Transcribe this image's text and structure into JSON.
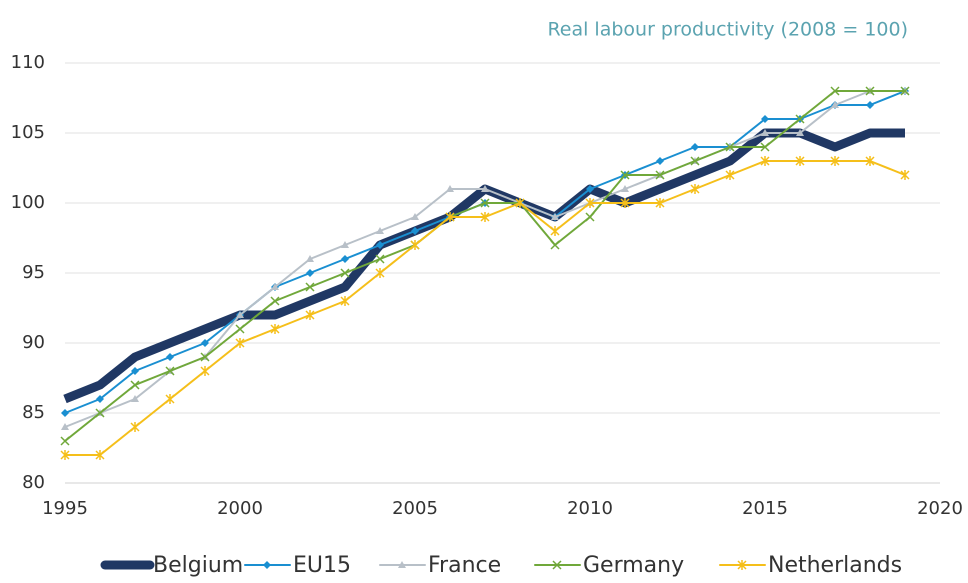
{
  "chart_data": {
    "type": "line",
    "title": "Real labour productivity (2008 = 100)",
    "x": [
      1995,
      1996,
      1997,
      1998,
      1999,
      2000,
      2001,
      2002,
      2003,
      2004,
      2005,
      2006,
      2007,
      2008,
      2009,
      2010,
      2011,
      2012,
      2013,
      2014,
      2015,
      2016,
      2017,
      2018,
      2019
    ],
    "series": [
      {
        "name": "Belgium",
        "color": "#203864",
        "marker": "none",
        "values": [
          86,
          87,
          89,
          90,
          91,
          92,
          92,
          93,
          94,
          97,
          98,
          99,
          101,
          100,
          99,
          101,
          100,
          101,
          102,
          103,
          105,
          105,
          104,
          105,
          105
        ]
      },
      {
        "name": "EU15",
        "color": "#1a8fd1",
        "marker": "diamond",
        "values": [
          85,
          86,
          88,
          89,
          90,
          92,
          94,
          95,
          96,
          97,
          98,
          99,
          100,
          100,
          99,
          101,
          102,
          103,
          104,
          104,
          106,
          106,
          107,
          107,
          108
        ]
      },
      {
        "name": "France",
        "color": "#b8c0c8",
        "marker": "triangle",
        "values": [
          84,
          85,
          86,
          88,
          89,
          92,
          94,
          96,
          97,
          98,
          99,
          101,
          101,
          100,
          99,
          100,
          101,
          102,
          103,
          104,
          105,
          105,
          107,
          108,
          108
        ]
      },
      {
        "name": "Germany",
        "color": "#70a83a",
        "marker": "x",
        "values": [
          83,
          85,
          87,
          88,
          89,
          91,
          93,
          94,
          95,
          96,
          97,
          99,
          100,
          100,
          97,
          99,
          102,
          102,
          103,
          104,
          104,
          106,
          108,
          108,
          108
        ]
      },
      {
        "name": "Netherlands",
        "color": "#f5bf1a",
        "marker": "star",
        "values": [
          82,
          82,
          84,
          86,
          88,
          90,
          91,
          92,
          93,
          95,
          97,
          99,
          99,
          100,
          98,
          100,
          100,
          100,
          101,
          102,
          103,
          103,
          103,
          103,
          102
        ]
      }
    ],
    "xlim": [
      1995,
      2020
    ],
    "xticks": [
      1995,
      2000,
      2005,
      2010,
      2015,
      2020
    ],
    "ylim": [
      80,
      110
    ],
    "yticks": [
      80,
      85,
      90,
      95,
      100,
      105,
      110
    ],
    "grid": true,
    "legend": "bottom"
  }
}
